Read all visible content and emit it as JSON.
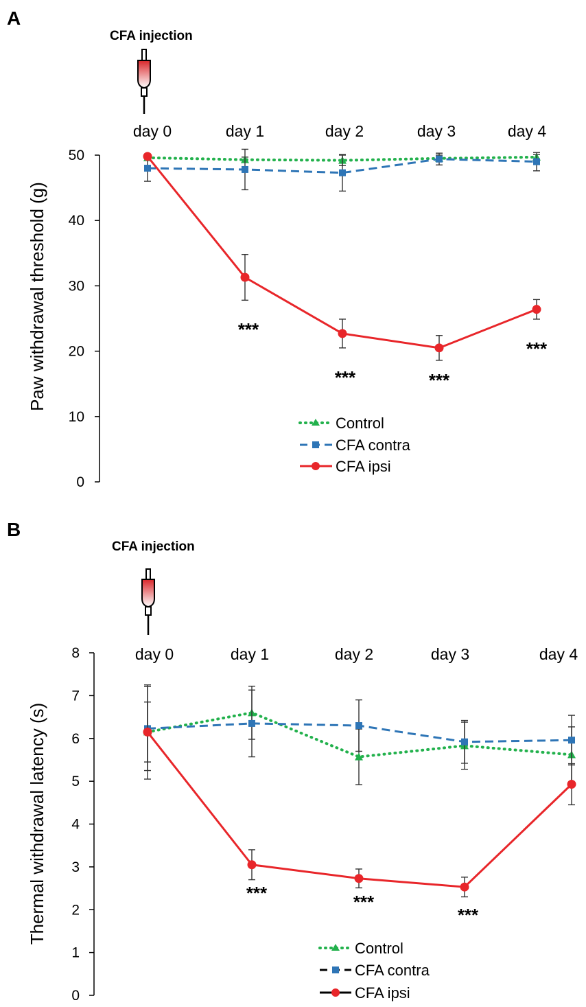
{
  "colors": {
    "control": "#22b14c",
    "contra": "#2e75b6",
    "ipsi": "#e8262a",
    "axis": "#000000"
  },
  "chart_data": [
    {
      "panel": "A",
      "type": "line",
      "injection_label": "CFA injection",
      "categories": [
        "day 0",
        "day 1",
        "day 2",
        "day 3",
        "day 4"
      ],
      "ylabel": "Paw withdrawal threshold (g)",
      "ylim": [
        0,
        50
      ],
      "yticks": [
        0,
        10,
        20,
        30,
        40,
        50
      ],
      "series": [
        {
          "name": "Control",
          "key": "control",
          "style": "dotted",
          "marker": "triangle",
          "values": [
            49.6,
            49.3,
            49.2,
            49.5,
            49.7
          ],
          "errors": [
            0.4,
            0.4,
            0.8,
            0.5,
            0.4
          ]
        },
        {
          "name": "CFA contra",
          "key": "contra",
          "style": "dashed",
          "marker": "square",
          "values": [
            48.0,
            47.8,
            47.3,
            49.4,
            49.0
          ],
          "errors": [
            2.0,
            3.1,
            2.8,
            0.9,
            1.4
          ]
        },
        {
          "name": "CFA ipsi",
          "key": "ipsi",
          "style": "solid",
          "marker": "circle",
          "values": [
            49.8,
            31.3,
            22.7,
            20.5,
            26.4
          ],
          "errors": [
            0.3,
            3.5,
            2.2,
            1.9,
            1.5
          ]
        }
      ],
      "significance": [
        {
          "category": "day 1",
          "label": "***"
        },
        {
          "category": "day 2",
          "label": "***"
        },
        {
          "category": "day 3",
          "label": "***"
        },
        {
          "category": "day 4",
          "label": "***"
        }
      ],
      "legend": [
        "Control",
        "CFA contra",
        "CFA ipsi"
      ]
    },
    {
      "panel": "B",
      "type": "line",
      "injection_label": "CFA injection",
      "categories": [
        "day 0",
        "day 1",
        "day 2",
        "day 3",
        "day 4"
      ],
      "ylabel": "Thermal withdrawal  latency (s)",
      "ylim": [
        0,
        8
      ],
      "yticks": [
        0,
        1,
        2,
        3,
        4,
        5,
        6,
        7,
        8
      ],
      "series": [
        {
          "name": "Control",
          "key": "control",
          "style": "dotted",
          "marker": "triangle",
          "values": [
            6.15,
            6.6,
            5.57,
            5.83,
            5.62
          ],
          "errors": [
            0.7,
            0.62,
            0.65,
            0.55,
            0.65
          ]
        },
        {
          "name": "CFA contra",
          "key": "contra",
          "style": "dashed",
          "marker": "square",
          "values": [
            6.23,
            6.35,
            6.3,
            5.92,
            5.96
          ],
          "errors": [
            0.98,
            0.78,
            0.6,
            0.5,
            0.58
          ]
        },
        {
          "name": "CFA ipsi",
          "key": "ipsi",
          "style": "solid",
          "marker": "circle",
          "values": [
            6.15,
            3.05,
            2.73,
            2.53,
            4.93
          ],
          "errors": [
            1.1,
            0.35,
            0.22,
            0.23,
            0.48
          ]
        }
      ],
      "significance": [
        {
          "category": "day 1",
          "label": "***"
        },
        {
          "category": "day 2",
          "label": "***"
        },
        {
          "category": "day 3",
          "label": "***"
        }
      ],
      "legend": [
        "Control",
        "CFA contra",
        "CFA ipsi"
      ]
    }
  ]
}
